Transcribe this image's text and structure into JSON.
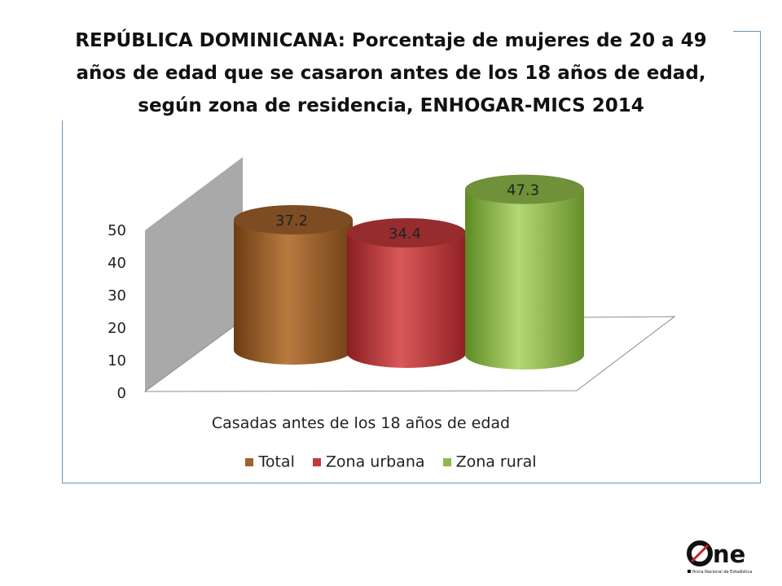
{
  "chart_data": {
    "type": "bar",
    "title": "REPÚBLICA DOMINICANA: Porcentaje de mujeres de 20 a 49 años de edad que se casaron antes de los 18 años de edad, según zona de residencia, ENHOGAR-MICS 2014",
    "categories": [
      "Casadas antes de los 18 años de edad"
    ],
    "xlabel": "Casadas antes de los 18 años de edad",
    "ylabel": "",
    "ylim": [
      0,
      50
    ],
    "yticks": [
      "0",
      "10",
      "20",
      "30",
      "40",
      "50"
    ],
    "series": [
      {
        "name": "Total",
        "values": [
          37.2
        ],
        "color": "#a0622b",
        "label": "37.2"
      },
      {
        "name": "Zona urbana",
        "values": [
          34.4
        ],
        "color": "#c0393b",
        "label": "34.4"
      },
      {
        "name": "Zona rural",
        "values": [
          47.3
        ],
        "color": "#8fb84a",
        "label": "47.3"
      }
    ],
    "legend_position": "bottom",
    "grid": false,
    "style": "3d-cylinder"
  },
  "logo": {
    "text": "One",
    "subtitle": "Oficina Nacional de Estadística",
    "accent_color": "#c8202f"
  }
}
